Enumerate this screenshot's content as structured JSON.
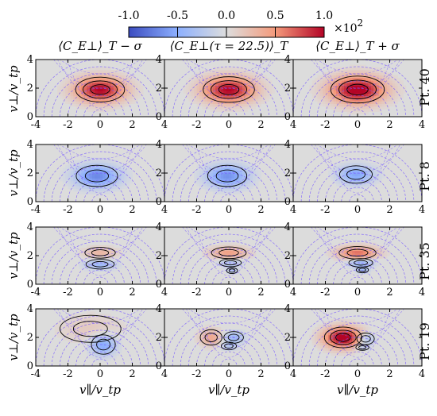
{
  "figure": {
    "colorbar": {
      "ticks": [
        "-1.0",
        "-0.5",
        "0.0",
        "0.5",
        "1.0"
      ],
      "multiplier": "×10",
      "exponent": "2",
      "min_color": "#3b4cc0",
      "mid_color": "#dddddd",
      "max_color": "#b40426"
    },
    "column_titles": [
      "⟨C_E⊥⟩_T − σ",
      "⟨C_E⊥(τ = 22.5)⟩_T",
      "⟨C_E⊥⟩_T + σ"
    ],
    "row_labels": [
      "Pt. 40",
      "Pt. 8",
      "Pt. 35",
      "Pt. 19"
    ],
    "x_axis_label": "v∥/v_tp",
    "y_axis_label": "v⊥/v_tp"
  },
  "chart_data": {
    "type": "heatmap",
    "x_range": [
      -4,
      4
    ],
    "y_range": [
      0,
      4
    ],
    "x_ticks": [
      "-4",
      "-2",
      "0",
      "2",
      "4"
    ],
    "y_ticks": [
      "0",
      "2",
      "4"
    ],
    "value_range": [
      -100,
      100
    ],
    "panels": [
      {
        "row": 0,
        "col": 0,
        "blobs": [
          {
            "x": 0.0,
            "y": 1.9,
            "sx": 1.05,
            "sy": 0.6,
            "amp": 100
          }
        ]
      },
      {
        "row": 0,
        "col": 1,
        "blobs": [
          {
            "x": 0.0,
            "y": 1.9,
            "sx": 1.1,
            "sy": 0.62,
            "amp": 100
          }
        ]
      },
      {
        "row": 0,
        "col": 2,
        "blobs": [
          {
            "x": 0.0,
            "y": 1.9,
            "sx": 1.15,
            "sy": 0.65,
            "amp": 110
          }
        ]
      },
      {
        "row": 1,
        "col": 0,
        "blobs": [
          {
            "x": -0.2,
            "y": 1.8,
            "sx": 0.95,
            "sy": 0.55,
            "amp": -70
          }
        ]
      },
      {
        "row": 1,
        "col": 1,
        "blobs": [
          {
            "x": -0.1,
            "y": 1.8,
            "sx": 0.9,
            "sy": 0.55,
            "amp": -65
          }
        ]
      },
      {
        "row": 1,
        "col": 2,
        "blobs": [
          {
            "x": -0.1,
            "y": 1.9,
            "sx": 0.75,
            "sy": 0.45,
            "amp": -55
          }
        ]
      },
      {
        "row": 2,
        "col": 0,
        "blobs": [
          {
            "x": 0.0,
            "y": 2.2,
            "sx": 0.7,
            "sy": 0.28,
            "amp": 30
          },
          {
            "x": 0.0,
            "y": 1.4,
            "sx": 0.65,
            "sy": 0.25,
            "amp": -40
          }
        ]
      },
      {
        "row": 2,
        "col": 1,
        "blobs": [
          {
            "x": 0.0,
            "y": 2.2,
            "sx": 0.8,
            "sy": 0.3,
            "amp": 45
          },
          {
            "x": 0.1,
            "y": 1.5,
            "sx": 0.5,
            "sy": 0.2,
            "amp": -30
          },
          {
            "x": 0.2,
            "y": 0.95,
            "sx": 0.25,
            "sy": 0.15,
            "amp": -25
          }
        ]
      },
      {
        "row": 2,
        "col": 2,
        "blobs": [
          {
            "x": 0.0,
            "y": 2.2,
            "sx": 0.85,
            "sy": 0.32,
            "amp": 65
          },
          {
            "x": 0.2,
            "y": 1.5,
            "sx": 0.55,
            "sy": 0.22,
            "amp": -45
          },
          {
            "x": 0.3,
            "y": 1.0,
            "sx": 0.28,
            "sy": 0.15,
            "amp": -35
          }
        ]
      },
      {
        "row": 3,
        "col": 0,
        "blobs": [
          {
            "x": 0.2,
            "y": 1.5,
            "sx": 0.55,
            "sy": 0.5,
            "amp": -55
          },
          {
            "x": -0.6,
            "y": 2.6,
            "sx": 1.4,
            "sy": 0.7,
            "amp": 15
          }
        ]
      },
      {
        "row": 3,
        "col": 1,
        "blobs": [
          {
            "x": -1.1,
            "y": 2.0,
            "sx": 0.5,
            "sy": 0.4,
            "amp": 40
          },
          {
            "x": 0.3,
            "y": 2.0,
            "sx": 0.45,
            "sy": 0.3,
            "amp": -40
          },
          {
            "x": 0.0,
            "y": 1.4,
            "sx": 0.35,
            "sy": 0.2,
            "amp": -25
          }
        ]
      },
      {
        "row": 3,
        "col": 2,
        "blobs": [
          {
            "x": -0.9,
            "y": 2.0,
            "sx": 0.8,
            "sy": 0.5,
            "amp": 110
          },
          {
            "x": 0.5,
            "y": 1.9,
            "sx": 0.4,
            "sy": 0.3,
            "amp": -40
          },
          {
            "x": 0.3,
            "y": 1.3,
            "sx": 0.3,
            "sy": 0.15,
            "amp": -25
          }
        ]
      }
    ]
  }
}
